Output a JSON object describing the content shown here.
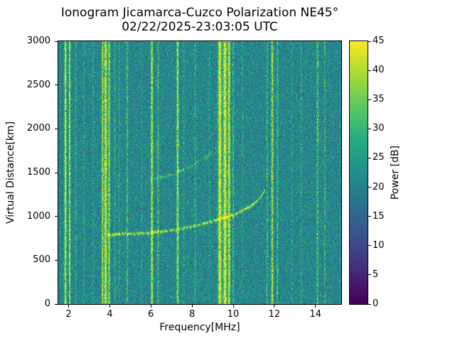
{
  "chart_data": {
    "type": "heatmap",
    "title": "Ionogram Jicamarca-Cuzco Polarization NE45°",
    "subtitle": "02/22/2025-23:03:05 UTC",
    "xlabel": "Frequency[MHz]",
    "ylabel": "Virtual Distance[km]",
    "colorbar_label": "Power [dB]",
    "colormap": "viridis",
    "xlim": [
      1.5,
      15.25
    ],
    "ylim": [
      0,
      3000
    ],
    "clim": [
      0,
      45
    ],
    "xticks": [
      2,
      4,
      6,
      8,
      10,
      12,
      14
    ],
    "yticks": [
      0,
      500,
      1000,
      1500,
      2000,
      2500,
      3000
    ],
    "cticks": [
      0,
      5,
      10,
      15,
      20,
      25,
      30,
      35,
      40,
      45
    ],
    "background_noise": {
      "mean": 21,
      "sd": 3.8
    },
    "rfi_lines": [
      {
        "f": 1.85,
        "sigma": 0.035,
        "amp": 24,
        "duty": 0.9
      },
      {
        "f": 2.05,
        "sigma": 0.03,
        "amp": 22,
        "duty": 0.85
      },
      {
        "f": 2.35,
        "sigma": 0.025,
        "amp": 10,
        "duty": 0.5
      },
      {
        "f": 2.75,
        "sigma": 0.025,
        "amp": 9,
        "duty": 0.4
      },
      {
        "f": 3.2,
        "sigma": 0.025,
        "amp": 8,
        "duty": 0.4
      },
      {
        "f": 3.65,
        "sigma": 0.03,
        "amp": 22,
        "duty": 0.85
      },
      {
        "f": 3.8,
        "sigma": 0.05,
        "amp": 24,
        "duty": 0.9
      },
      {
        "f": 3.97,
        "sigma": 0.03,
        "amp": 22,
        "duty": 0.85
      },
      {
        "f": 4.25,
        "sigma": 0.025,
        "amp": 10,
        "duty": 0.5
      },
      {
        "f": 4.45,
        "sigma": 0.025,
        "amp": 9,
        "duty": 0.45
      },
      {
        "f": 4.85,
        "sigma": 0.03,
        "amp": 14,
        "duty": 0.6
      },
      {
        "f": 5.55,
        "sigma": 0.025,
        "amp": 8,
        "duty": 0.35
      },
      {
        "f": 6.05,
        "sigma": 0.035,
        "amp": 23,
        "duty": 0.9
      },
      {
        "f": 6.35,
        "sigma": 0.03,
        "amp": 14,
        "duty": 0.55
      },
      {
        "f": 7.3,
        "sigma": 0.035,
        "amp": 22,
        "duty": 0.85
      },
      {
        "f": 7.6,
        "sigma": 0.025,
        "amp": 9,
        "duty": 0.4
      },
      {
        "f": 8.15,
        "sigma": 0.03,
        "amp": 11,
        "duty": 0.45
      },
      {
        "f": 8.85,
        "sigma": 0.025,
        "amp": 9,
        "duty": 0.4
      },
      {
        "f": 9.35,
        "sigma": 0.06,
        "amp": 25,
        "duty": 0.95
      },
      {
        "f": 9.6,
        "sigma": 0.06,
        "amp": 25,
        "duty": 0.95
      },
      {
        "f": 9.8,
        "sigma": 0.04,
        "amp": 24,
        "duty": 0.9
      },
      {
        "f": 10.0,
        "sigma": 0.03,
        "amp": 14,
        "duty": 0.55
      },
      {
        "f": 10.45,
        "sigma": 0.025,
        "amp": 9,
        "duty": 0.4
      },
      {
        "f": 11.65,
        "sigma": 0.03,
        "amp": 13,
        "duty": 0.5
      },
      {
        "f": 11.9,
        "sigma": 0.035,
        "amp": 22,
        "duty": 0.8
      },
      {
        "f": 12.15,
        "sigma": 0.03,
        "amp": 14,
        "duty": 0.55
      },
      {
        "f": 12.85,
        "sigma": 0.025,
        "amp": 8,
        "duty": 0.35
      },
      {
        "f": 13.3,
        "sigma": 0.025,
        "amp": 10,
        "duty": 0.4
      },
      {
        "f": 14.1,
        "sigma": 0.035,
        "amp": 16,
        "duty": 0.55
      },
      {
        "f": 14.45,
        "sigma": 0.025,
        "amp": 12,
        "duty": 0.5
      }
    ],
    "echo_traces": [
      {
        "name": "F-region-echo",
        "points": [
          [
            3.9,
            790
          ],
          [
            5.0,
            805
          ],
          [
            6.0,
            815
          ],
          [
            7.0,
            845
          ],
          [
            8.0,
            890
          ],
          [
            9.0,
            950
          ],
          [
            10.0,
            1020
          ],
          [
            10.8,
            1110
          ],
          [
            11.3,
            1210
          ],
          [
            11.55,
            1300
          ]
        ],
        "amp": 20,
        "duty": 0.85,
        "thickness": 2
      },
      {
        "name": "second-hop-echo",
        "points": [
          [
            6.1,
            1430
          ],
          [
            6.8,
            1470
          ],
          [
            7.5,
            1530
          ],
          [
            8.2,
            1610
          ],
          [
            8.8,
            1700
          ],
          [
            9.2,
            1790
          ]
        ],
        "amp": 12,
        "duty": 0.5,
        "thickness": 2
      }
    ]
  }
}
